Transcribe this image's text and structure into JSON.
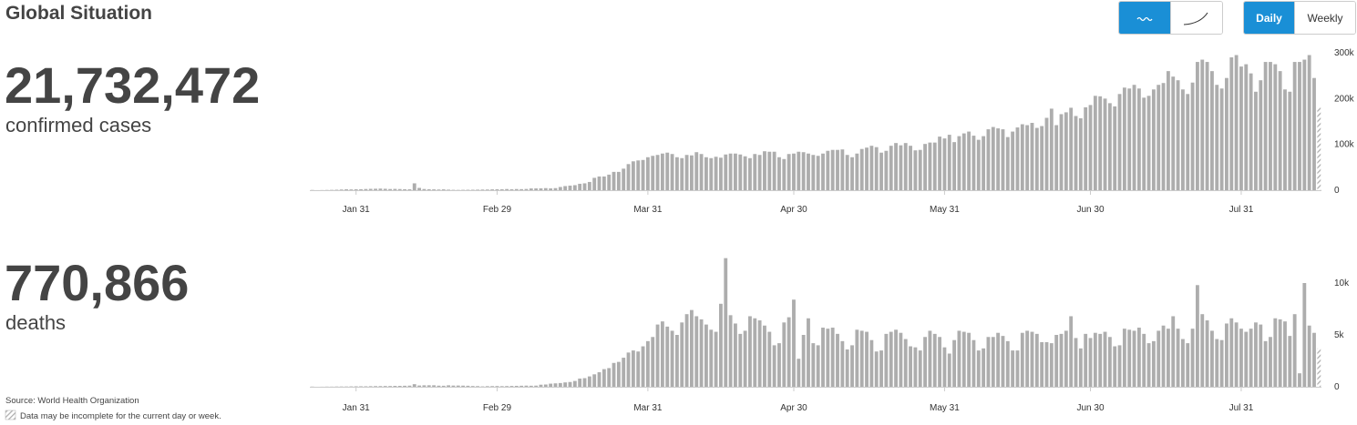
{
  "header": {
    "title": "Global Situation"
  },
  "stats": [
    {
      "value": "21,732,472",
      "label": "confirmed cases"
    },
    {
      "value": "770,866",
      "label": "deaths"
    }
  ],
  "controls": {
    "daily": "Daily",
    "weekly": "Weekly"
  },
  "footer": {
    "source": "Source: World Health Organization",
    "note": "Data may be incomplete for the current day or week."
  },
  "chart_data": [
    {
      "type": "bar",
      "color": "#adadad",
      "grid": false,
      "categories": [
        null,
        null,
        null,
        null,
        null,
        null,
        null,
        null,
        null,
        "Jan 31",
        null,
        null,
        null,
        null,
        null,
        null,
        null,
        null,
        null,
        null,
        null,
        null,
        null,
        null,
        null,
        null,
        null,
        null,
        null,
        null,
        null,
        null,
        null,
        null,
        null,
        null,
        null,
        null,
        "Feb 29",
        null,
        null,
        null,
        null,
        null,
        null,
        null,
        null,
        null,
        null,
        null,
        null,
        null,
        null,
        null,
        null,
        null,
        null,
        null,
        null,
        null,
        null,
        null,
        null,
        null,
        null,
        null,
        null,
        null,
        null,
        "Mar 31",
        null,
        null,
        null,
        null,
        null,
        null,
        null,
        null,
        null,
        null,
        null,
        null,
        null,
        null,
        null,
        null,
        null,
        null,
        null,
        null,
        null,
        null,
        null,
        null,
        null,
        null,
        null,
        null,
        null,
        "Apr 30",
        null,
        null,
        null,
        null,
        null,
        null,
        null,
        null,
        null,
        null,
        null,
        null,
        null,
        null,
        null,
        null,
        null,
        null,
        null,
        null,
        null,
        null,
        null,
        null,
        null,
        null,
        null,
        null,
        null,
        null,
        "May 31",
        null,
        null,
        null,
        null,
        null,
        null,
        null,
        null,
        null,
        null,
        null,
        null,
        null,
        null,
        null,
        null,
        null,
        null,
        null,
        null,
        null,
        null,
        null,
        null,
        null,
        null,
        null,
        null,
        null,
        "Jun 30",
        null,
        null,
        null,
        null,
        null,
        null,
        null,
        null,
        null,
        null,
        null,
        null,
        null,
        null,
        null,
        null,
        null,
        null,
        null,
        null,
        null,
        null,
        null,
        null,
        null,
        null,
        null,
        null,
        null,
        null,
        "Jul 31",
        null,
        null,
        null,
        null,
        null,
        null,
        null,
        null,
        null,
        null,
        null,
        null,
        null,
        null,
        null,
        null
      ],
      "values": [
        500,
        100,
        300,
        500,
        700,
        1000,
        1500,
        2000,
        1700,
        2000,
        2100,
        2600,
        3000,
        3200,
        3500,
        3100,
        2600,
        2800,
        2500,
        2100,
        2000,
        15000,
        5000,
        2600,
        2000,
        1800,
        1500,
        1800,
        1200,
        800,
        600,
        800,
        900,
        1000,
        1200,
        1400,
        1500,
        1800,
        2000,
        2000,
        2500,
        2000,
        2500,
        2300,
        2700,
        3800,
        3900,
        4000,
        4500,
        3900,
        4500,
        7000,
        9000,
        10000,
        11000,
        14000,
        15000,
        18000,
        27000,
        30000,
        30000,
        34000,
        40000,
        40000,
        47000,
        57000,
        63000,
        65000,
        66000,
        72000,
        75000,
        77000,
        80000,
        82000,
        79000,
        72000,
        70000,
        77000,
        76000,
        83000,
        79000,
        72000,
        70000,
        73000,
        71000,
        78000,
        80000,
        80000,
        78000,
        74000,
        70000,
        79000,
        77000,
        85000,
        84000,
        84000,
        72000,
        68000,
        79000,
        80000,
        84000,
        83000,
        80000,
        77000,
        75000,
        80000,
        86000,
        88000,
        88000,
        89000,
        77000,
        72000,
        80000,
        90000,
        93000,
        97000,
        94000,
        82000,
        86000,
        97000,
        103000,
        98000,
        103000,
        97000,
        87000,
        88000,
        101000,
        104000,
        104000,
        117000,
        113000,
        121000,
        105000,
        118000,
        124000,
        128000,
        119000,
        110000,
        118000,
        133000,
        138000,
        135000,
        133000,
        116000,
        128000,
        137000,
        144000,
        142000,
        147000,
        136000,
        140000,
        158000,
        178000,
        142000,
        166000,
        170000,
        180000,
        162000,
        157000,
        181000,
        186000,
        206000,
        205000,
        200000,
        190000,
        183000,
        210000,
        224000,
        222000,
        230000,
        222000,
        202000,
        206000,
        220000,
        230000,
        234000,
        260000,
        248000,
        240000,
        220000,
        210000,
        235000,
        280000,
        285000,
        280000,
        260000,
        230000,
        222000,
        245000,
        290000,
        295000,
        270000,
        275000,
        255000,
        215000,
        240000,
        280000,
        280000,
        275000,
        260000,
        220000,
        215000,
        280000,
        280000,
        285000,
        295000,
        245000,
        180000
      ],
      "ylim": [
        0,
        300000
      ],
      "yticks": [
        0,
        {
          "value": 100000,
          "label": "100k"
        },
        {
          "value": 200000,
          "label": "200k"
        },
        {
          "value": 300000,
          "label": "300k"
        }
      ]
    },
    {
      "type": "bar",
      "color": "#adadad",
      "grid": false,
      "categories": [
        null,
        null,
        null,
        null,
        null,
        null,
        null,
        null,
        null,
        "Jan 31",
        null,
        null,
        null,
        null,
        null,
        null,
        null,
        null,
        null,
        null,
        null,
        null,
        null,
        null,
        null,
        null,
        null,
        null,
        null,
        null,
        null,
        null,
        null,
        null,
        null,
        null,
        null,
        null,
        "Feb 29",
        null,
        null,
        null,
        null,
        null,
        null,
        null,
        null,
        null,
        null,
        null,
        null,
        null,
        null,
        null,
        null,
        null,
        null,
        null,
        null,
        null,
        null,
        null,
        null,
        null,
        null,
        null,
        null,
        null,
        null,
        "Mar 31",
        null,
        null,
        null,
        null,
        null,
        null,
        null,
        null,
        null,
        null,
        null,
        null,
        null,
        null,
        null,
        null,
        null,
        null,
        null,
        null,
        null,
        null,
        null,
        null,
        null,
        null,
        null,
        null,
        null,
        "Apr 30",
        null,
        null,
        null,
        null,
        null,
        null,
        null,
        null,
        null,
        null,
        null,
        null,
        null,
        null,
        null,
        null,
        null,
        null,
        null,
        null,
        null,
        null,
        null,
        null,
        null,
        null,
        null,
        null,
        null,
        null,
        "May 31",
        null,
        null,
        null,
        null,
        null,
        null,
        null,
        null,
        null,
        null,
        null,
        null,
        null,
        null,
        null,
        null,
        null,
        null,
        null,
        null,
        null,
        null,
        null,
        null,
        null,
        null,
        null,
        null,
        null,
        "Jun 30",
        null,
        null,
        null,
        null,
        null,
        null,
        null,
        null,
        null,
        null,
        null,
        null,
        null,
        null,
        null,
        null,
        null,
        null,
        null,
        null,
        null,
        null,
        null,
        null,
        null,
        null,
        null,
        null,
        null,
        null,
        "Jul 31",
        null,
        null,
        null,
        null,
        null,
        null,
        null,
        null,
        null,
        null,
        null,
        null,
        null,
        null,
        null,
        null
      ],
      "values": [
        17,
        0,
        8,
        16,
        15,
        24,
        26,
        26,
        38,
        43,
        46,
        45,
        57,
        64,
        66,
        73,
        73,
        86,
        89,
        97,
        108,
        250,
        120,
        140,
        143,
        142,
        106,
        98,
        139,
        115,
        118,
        109,
        98,
        71,
        64,
        37,
        58,
        64,
        72,
        60,
        70,
        80,
        90,
        100,
        110,
        100,
        110,
        200,
        220,
        300,
        330,
        360,
        420,
        460,
        560,
        790,
        830,
        1000,
        1200,
        1400,
        1700,
        1800,
        2300,
        2400,
        2800,
        3300,
        3500,
        3400,
        3900,
        4400,
        4800,
        6000,
        6300,
        5800,
        5400,
        5000,
        6200,
        7000,
        7400,
        6800,
        6500,
        6000,
        5500,
        5300,
        8000,
        12400,
        6900,
        6100,
        5100,
        5400,
        6800,
        6600,
        6400,
        5900,
        5300,
        4000,
        4200,
        6200,
        6700,
        8400,
        2700,
        5000,
        6600,
        4200,
        4000,
        5700,
        5600,
        5700,
        5100,
        4400,
        3600,
        4000,
        5500,
        5400,
        5300,
        4500,
        3400,
        3500,
        5100,
        5300,
        5500,
        5200,
        4600,
        3900,
        3800,
        3500,
        4800,
        5400,
        5100,
        4800,
        3800,
        3200,
        4500,
        5400,
        5300,
        5200,
        4500,
        3500,
        3700,
        4800,
        4800,
        5200,
        4900,
        4400,
        3500,
        3500,
        5200,
        5400,
        5300,
        5100,
        4300,
        4300,
        4200,
        5000,
        5100,
        5400,
        6800,
        4700,
        3700,
        5100,
        4700,
        5200,
        5100,
        5300,
        4800,
        3900,
        4000,
        5600,
        5500,
        5400,
        5700,
        5100,
        4200,
        4400,
        5400,
        5900,
        5600,
        6800,
        5600,
        4600,
        4200,
        5600,
        9800,
        7000,
        6400,
        5400,
        4600,
        4500,
        6100,
        6600,
        6200,
        5600,
        5300,
        5600,
        6200,
        6000,
        4400,
        4800,
        6600,
        6500,
        6300,
        4900,
        7000,
        1300,
        10000,
        5900,
        5200,
        3700
      ],
      "ylim": [
        0,
        12500
      ],
      "yticks": [
        0,
        {
          "value": 5000,
          "label": "5k"
        },
        {
          "value": 10000,
          "label": "10k"
        }
      ]
    }
  ]
}
